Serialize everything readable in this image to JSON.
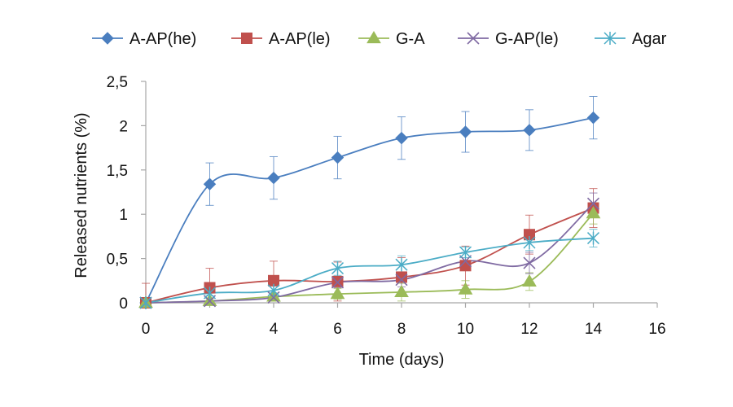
{
  "chart_data": {
    "type": "line",
    "title": "",
    "xlabel": "Time (days)",
    "ylabel": "Released nutrients (%)",
    "xlim": [
      0,
      16
    ],
    "ylim": [
      0,
      2.5
    ],
    "x_ticks": [
      0,
      2,
      4,
      6,
      8,
      10,
      12,
      14,
      16
    ],
    "x_tick_labels": [
      "0",
      "2",
      "4",
      "6",
      "8",
      "10",
      "12",
      "14",
      "16"
    ],
    "y_ticks": [
      0,
      0.5,
      1,
      1.5,
      2,
      2.5
    ],
    "y_tick_labels": [
      "0",
      "0,5",
      "1",
      "1,5",
      "2",
      "2,5"
    ],
    "grid": false,
    "legend_position": "top",
    "x": [
      0,
      2,
      4,
      6,
      8,
      10,
      12,
      14
    ],
    "series": [
      {
        "name": "A-AP(he)",
        "color": "#4a7ebf",
        "marker": "diamond",
        "values": [
          0,
          1.34,
          1.41,
          1.64,
          1.86,
          1.93,
          1.95,
          2.09
        ],
        "errors": [
          0.05,
          0.24,
          0.24,
          0.24,
          0.24,
          0.23,
          0.23,
          0.24
        ]
      },
      {
        "name": "A-AP(le)",
        "color": "#c0504d",
        "marker": "square",
        "values": [
          0,
          0.17,
          0.25,
          0.24,
          0.29,
          0.42,
          0.77,
          1.07
        ],
        "errors": [
          0.22,
          0.22,
          0.22,
          0.22,
          0.22,
          0.22,
          0.22,
          0.22
        ]
      },
      {
        "name": "G-A",
        "color": "#9bbb59",
        "marker": "triangle",
        "values": [
          0,
          0.02,
          0.07,
          0.1,
          0.12,
          0.15,
          0.24,
          1.01
        ],
        "errors": [
          0.03,
          0.03,
          0.04,
          0.06,
          0.1,
          0.1,
          0.1,
          0.12
        ]
      },
      {
        "name": "G-AP(le)",
        "color": "#7f6aa2",
        "marker": "x",
        "values": [
          0,
          0.02,
          0.06,
          0.23,
          0.26,
          0.47,
          0.45,
          1.12
        ],
        "errors": [
          0.03,
          0.03,
          0.04,
          0.06,
          0.08,
          0.1,
          0.12,
          0.12
        ]
      },
      {
        "name": "Agar",
        "color": "#4bacc6",
        "marker": "star",
        "values": [
          0,
          0.11,
          0.14,
          0.39,
          0.43,
          0.57,
          0.68,
          0.73
        ],
        "errors": [
          0.03,
          0.03,
          0.05,
          0.08,
          0.1,
          0.06,
          0.09,
          0.1
        ]
      }
    ]
  }
}
